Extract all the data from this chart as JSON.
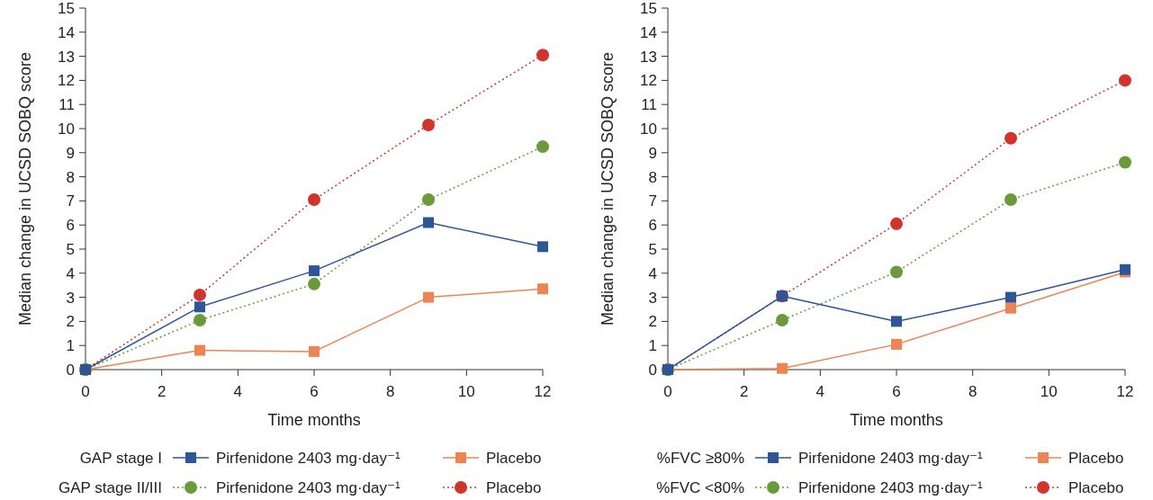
{
  "chart_data": [
    {
      "type": "line",
      "xlabel": "Time months",
      "ylabel": "Median change in UCSD SOBQ score",
      "x": [
        0,
        3,
        6,
        9,
        12
      ],
      "xlim": [
        0,
        12
      ],
      "xticks": [
        0,
        2,
        4,
        6,
        8,
        10,
        12
      ],
      "ylim": [
        0,
        15
      ],
      "yticks": [
        0,
        1,
        2,
        3,
        4,
        5,
        6,
        7,
        8,
        9,
        10,
        11,
        12,
        13,
        14,
        15
      ],
      "grid": false,
      "legend": "bottom",
      "annotations": [
        "GAP stage I",
        "GAP stage II/III"
      ],
      "series": [
        {
          "name": "Pirfenidone 2403 mg·day⁻¹",
          "color": "#2e5597",
          "marker": "square",
          "line_style": "solid",
          "values": [
            0,
            2.6,
            4.1,
            6.1,
            5.1
          ]
        },
        {
          "name": "Placebo",
          "color": "#ee8451",
          "marker": "square",
          "line_style": "solid",
          "values": [
            0,
            0.8,
            0.75,
            3.0,
            3.35
          ]
        },
        {
          "name": "Pirfenidone 2403 mg·day⁻¹",
          "color": "#6a9a3a",
          "marker": "circle",
          "line_style": "dotted",
          "values": [
            0,
            2.05,
            3.55,
            7.05,
            9.25
          ]
        },
        {
          "name": "Placebo",
          "color": "#d0342c",
          "marker": "circle",
          "line_style": "dotted",
          "values": [
            0,
            3.1,
            7.05,
            10.15,
            13.05
          ]
        }
      ]
    },
    {
      "type": "line",
      "xlabel": "Time months",
      "ylabel": "Median change in UCSD SOBQ score",
      "x": [
        0,
        3,
        6,
        9,
        12
      ],
      "xlim": [
        0,
        12
      ],
      "xticks": [
        0,
        2,
        4,
        6,
        8,
        10,
        12
      ],
      "ylim": [
        0,
        15
      ],
      "yticks": [
        0,
        1,
        2,
        3,
        4,
        5,
        6,
        7,
        8,
        9,
        10,
        11,
        12,
        13,
        14,
        15
      ],
      "grid": false,
      "legend": "bottom",
      "annotations": [
        "%FVC ≥80%",
        "%FVC <80%"
      ],
      "series": [
        {
          "name": "Pirfenidone 2403 mg·day⁻¹",
          "color": "#2e5597",
          "marker": "square",
          "line_style": "solid",
          "values": [
            0,
            3.05,
            2.0,
            3.0,
            4.15
          ]
        },
        {
          "name": "Placebo",
          "color": "#ee8451",
          "marker": "square",
          "line_style": "solid",
          "values": [
            0,
            0.05,
            1.05,
            2.55,
            4.05
          ]
        },
        {
          "name": "Pirfenidone 2403 mg·day⁻¹",
          "color": "#6a9a3a",
          "marker": "circle",
          "line_style": "dotted",
          "values": [
            0,
            2.05,
            4.05,
            7.05,
            8.6
          ]
        },
        {
          "name": "Placebo",
          "color": "#d0342c",
          "marker": "circle",
          "line_style": "dotted",
          "values": [
            0,
            3.05,
            6.05,
            9.6,
            12.0
          ]
        }
      ]
    }
  ]
}
